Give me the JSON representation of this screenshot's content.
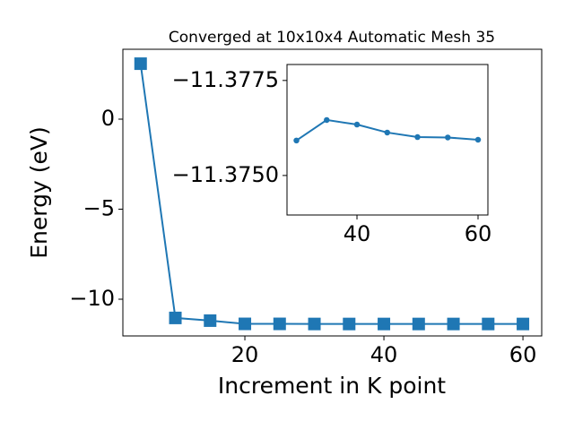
{
  "chart_data": [
    {
      "type": "line",
      "title": "Converged at 10x10x4 Automatic Mesh 35",
      "x_label": "Increment in K point",
      "y_label": "Energy (eV)",
      "x": [
        5,
        10,
        15,
        20,
        25,
        30,
        35,
        40,
        45,
        50,
        55,
        60
      ],
      "series": [
        {
          "color": "#1f77b4",
          "marker": "square",
          "values": [
            3.08,
            -11.04,
            -11.19,
            -11.37,
            -11.37,
            -11.37592,
            -11.37646,
            -11.37634,
            -11.37613,
            -11.37601,
            -11.376,
            -11.37594
          ]
        }
      ],
      "xlim": [
        2.45,
        62.7
      ],
      "ylim": [
        -12.04,
        3.88
      ],
      "xticks": [
        20,
        40,
        60
      ],
      "yticks": [
        {
          "value": -10,
          "label": "−10"
        },
        {
          "value": -5,
          "label": "−5"
        },
        0
      ]
    },
    {
      "type": "line",
      "x": [
        30,
        35,
        40,
        45,
        50,
        55,
        60
      ],
      "series": [
        {
          "color": "#1f77b4",
          "marker": "circle",
          "values": [
            -11.37592,
            -11.37646,
            -11.37634,
            -11.37613,
            -11.37601,
            -11.376,
            -11.37594
          ]
        }
      ],
      "xlim": [
        28.44,
        61.63
      ],
      "ylim": [
        -11.37396,
        -11.37792
      ],
      "xticks": [
        40,
        60
      ],
      "yticks": [
        {
          "value": -11.3775,
          "label": "−11.3775"
        },
        {
          "value": -11.375,
          "label": "−11.3750"
        }
      ]
    }
  ]
}
